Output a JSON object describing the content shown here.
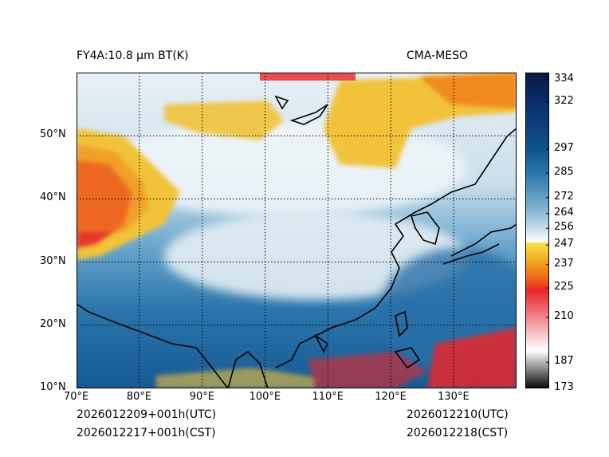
{
  "title_left": "FY4A:10.8 µm BT(K)",
  "title_right": "CMA-MESO",
  "footer": {
    "init_utc": "2026012209+001h(UTC)",
    "init_cst": "2026012217+001h(CST)",
    "valid_utc": "2026012210(UTC)",
    "valid_cst": "2026012218(CST)"
  },
  "lat_labels": [
    "50°N",
    "40°N",
    "30°N",
    "20°N",
    "10°N"
  ],
  "lon_labels": [
    "70°E",
    "80°E",
    "90°E",
    "100°E",
    "110°E",
    "120°E",
    "130°E"
  ],
  "lat_values": [
    50,
    40,
    30,
    20,
    10
  ],
  "lon_values": [
    70,
    80,
    90,
    100,
    110,
    120,
    130
  ],
  "extent": {
    "lon_min": 70,
    "lon_max": 140,
    "lat_min": 10,
    "lat_max": 60
  },
  "colorbar": {
    "labels": [
      "334",
      "322",
      "297",
      "285",
      "272",
      "264",
      "256",
      "247",
      "237",
      "225",
      "210",
      "187",
      "173"
    ],
    "values": [
      334,
      322,
      297,
      285,
      272,
      264,
      256,
      247,
      237,
      225,
      210,
      187,
      173
    ],
    "min": 173,
    "max": 338
  },
  "colors": {
    "deep_blue": "#0a3a7a",
    "mid_blue": "#2e78ad",
    "light_blue": "#9cc7df",
    "pale": "#dfeaf1",
    "cold_yellow": "#f2c23a",
    "orange": "#f08a1c",
    "red": "#e8262a"
  }
}
